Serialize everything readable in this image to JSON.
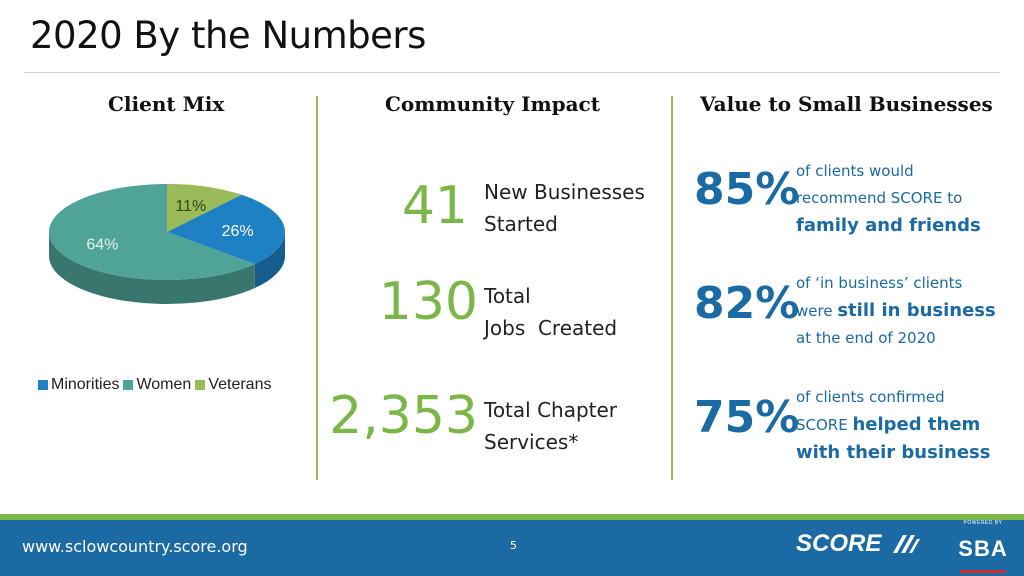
{
  "slide": {
    "title": "2020 By the Numbers",
    "page_number": "5",
    "footer_url": "www.sclowcountry.score.org"
  },
  "columns": {
    "client_mix": "Client Mix",
    "community_impact": "Community Impact",
    "value": "Value to Small Businesses"
  },
  "chart_data": {
    "type": "pie",
    "labels": [
      "Minorities",
      "Women",
      "Veterans"
    ],
    "values": [
      26,
      64,
      11
    ],
    "value_labels": [
      "26%",
      "64%",
      "11%"
    ],
    "colors": [
      "#1d81c4",
      "#4fa497",
      "#9bbb59"
    ],
    "legend_position": "bottom"
  },
  "impact": [
    {
      "number": "41",
      "line1": "New Businesses",
      "line2": "Started"
    },
    {
      "number": "130",
      "line1": "Total",
      "line2": "Jobs  Created"
    },
    {
      "number": "2,353",
      "line1": "Total Chapter",
      "line2": "Services*"
    }
  ],
  "value_stats": [
    {
      "pct": "85%",
      "l1": "of clients would",
      "l2": "recommend SCORE to",
      "l3": "family and friends"
    },
    {
      "pct": "82%",
      "l1": "of ‘in business’ clients",
      "l2a": "were ",
      "l2b": "still in business",
      "l3": "at the end of 2020"
    },
    {
      "pct": "75%",
      "l1": "of clients confirmed",
      "l2a": "SCORE ",
      "l2b": "helped them",
      "l3": "with their business"
    }
  ],
  "logos": {
    "score": "SCORE",
    "sba_powered": "POWERED BY",
    "sba": "SBA"
  },
  "colors": {
    "accent_green": "#7ab648",
    "brand_blue": "#1b6aa3"
  }
}
